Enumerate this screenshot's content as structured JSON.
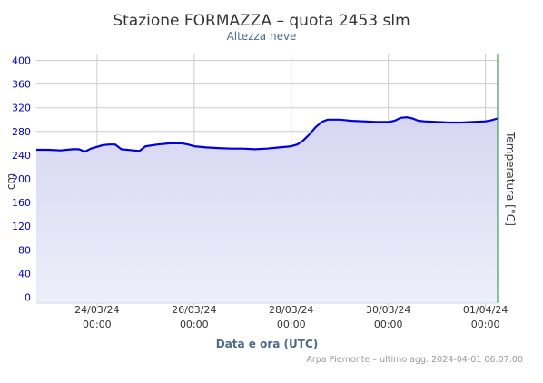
{
  "chart_data": {
    "type": "area",
    "title": "Stazione FORMAZZA – quota 2453 slm",
    "subtitle": "Altezza neve",
    "xlabel": "Data e ora (UTC)",
    "ylabel": "cm",
    "ylabel_right": "Temperatura [°C]",
    "credits": "Arpa Piemonte – ultimo agg. 2024-04-01 06:07:00",
    "x_axis": {
      "type": "datetime",
      "range": [
        "2024-03-22T18:00",
        "2024-04-01T06:00"
      ],
      "ticks": [
        {
          "date": "2024-03-24T00:00",
          "label": "24/03/24",
          "sublabel": "00:00"
        },
        {
          "date": "2024-03-26T00:00",
          "label": "26/03/24",
          "sublabel": "00:00"
        },
        {
          "date": "2024-03-28T00:00",
          "label": "28/03/24",
          "sublabel": "00:00"
        },
        {
          "date": "2024-03-30T00:00",
          "label": "30/03/24",
          "sublabel": "00:00"
        },
        {
          "date": "2024-04-01T00:00",
          "label": "01/04/24",
          "sublabel": "00:00"
        }
      ]
    },
    "y_axis": {
      "range": [
        -10,
        410
      ],
      "ticks": [
        0,
        40,
        80,
        120,
        160,
        200,
        240,
        280,
        320,
        360,
        400
      ]
    },
    "grid": true,
    "colors": {
      "series": "#0000dd",
      "fill_top": "#d6d6f2",
      "fill_bottom": "#eeeefa",
      "grid": "#cccccc",
      "tick_label": "#0000cc",
      "right_axis": "#1e8a3c",
      "title": "#333333",
      "axis_title": "#4d6b8a"
    },
    "series": [
      {
        "name": "Altezza neve",
        "unit": "cm",
        "points": [
          [
            "2024-03-22T18:00",
            249
          ],
          [
            "2024-03-23T00:00",
            249
          ],
          [
            "2024-03-23T06:00",
            248
          ],
          [
            "2024-03-23T12:00",
            250
          ],
          [
            "2024-03-23T15:00",
            250
          ],
          [
            "2024-03-23T18:00",
            246
          ],
          [
            "2024-03-23T21:00",
            251
          ],
          [
            "2024-03-24T03:00",
            257
          ],
          [
            "2024-03-24T06:00",
            258
          ],
          [
            "2024-03-24T09:00",
            258
          ],
          [
            "2024-03-24T12:00",
            250
          ],
          [
            "2024-03-24T18:00",
            248
          ],
          [
            "2024-03-24T21:00",
            247
          ],
          [
            "2024-03-25T00:00",
            255
          ],
          [
            "2024-03-25T06:00",
            258
          ],
          [
            "2024-03-25T12:00",
            260
          ],
          [
            "2024-03-25T18:00",
            260
          ],
          [
            "2024-03-25T21:00",
            258
          ],
          [
            "2024-03-26T00:00",
            255
          ],
          [
            "2024-03-26T06:00",
            253
          ],
          [
            "2024-03-26T12:00",
            252
          ],
          [
            "2024-03-26T18:00",
            251
          ],
          [
            "2024-03-27T00:00",
            251
          ],
          [
            "2024-03-27T06:00",
            250
          ],
          [
            "2024-03-27T12:00",
            251
          ],
          [
            "2024-03-27T18:00",
            253
          ],
          [
            "2024-03-28T00:00",
            255
          ],
          [
            "2024-03-28T03:00",
            258
          ],
          [
            "2024-03-28T06:00",
            265
          ],
          [
            "2024-03-28T09:00",
            275
          ],
          [
            "2024-03-28T12:00",
            287
          ],
          [
            "2024-03-28T15:00",
            296
          ],
          [
            "2024-03-28T18:00",
            300
          ],
          [
            "2024-03-29T00:00",
            300
          ],
          [
            "2024-03-29T06:00",
            298
          ],
          [
            "2024-03-29T12:00",
            297
          ],
          [
            "2024-03-29T18:00",
            296
          ],
          [
            "2024-03-30T00:00",
            296
          ],
          [
            "2024-03-30T03:00",
            298
          ],
          [
            "2024-03-30T06:00",
            303
          ],
          [
            "2024-03-30T09:00",
            304
          ],
          [
            "2024-03-30T12:00",
            302
          ],
          [
            "2024-03-30T15:00",
            298
          ],
          [
            "2024-03-30T18:00",
            297
          ],
          [
            "2024-03-31T00:00",
            296
          ],
          [
            "2024-03-31T06:00",
            295
          ],
          [
            "2024-03-31T12:00",
            295
          ],
          [
            "2024-03-31T18:00",
            296
          ],
          [
            "2024-04-01T00:00",
            297
          ],
          [
            "2024-04-01T03:00",
            299
          ],
          [
            "2024-04-01T06:00",
            302
          ]
        ]
      }
    ]
  }
}
